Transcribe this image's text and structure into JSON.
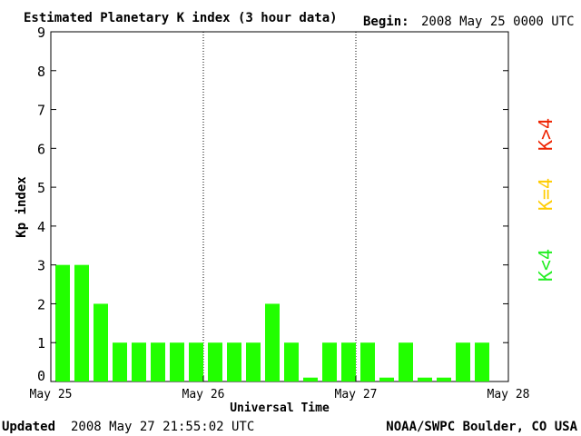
{
  "chart_data": {
    "type": "bar",
    "title": "Estimated Planetary K index (3 hour data)",
    "begin_label": "Begin:",
    "begin_value": "2008 May 25 0000 UTC",
    "ylabel": "Kp index",
    "xlabel": "Universal Time",
    "ylim": [
      0,
      9
    ],
    "yticks": [
      "0",
      "1",
      "2",
      "3",
      "4",
      "5",
      "6",
      "7",
      "8",
      "9"
    ],
    "xticks": [
      "May 25",
      "May 26",
      "May 27",
      "May 28"
    ],
    "interval_hours": 3,
    "values": [
      3,
      3,
      2,
      1,
      1,
      1,
      1,
      1,
      1,
      1,
      1,
      2,
      1,
      0.1,
      1,
      1,
      1,
      0.1,
      1,
      0.1,
      0.1,
      1,
      1
    ],
    "bar_color": "#22ff00",
    "legend": [
      {
        "label": "K<4",
        "color": "#22ee22"
      },
      {
        "label": "K=4",
        "color": "#ffcc00"
      },
      {
        "label": "K>4",
        "color": "#ee2200"
      }
    ],
    "updated_label": "Updated",
    "updated_value": "2008 May 27 21:55:02 UTC",
    "source": "NOAA/SWPC Boulder, CO USA"
  }
}
